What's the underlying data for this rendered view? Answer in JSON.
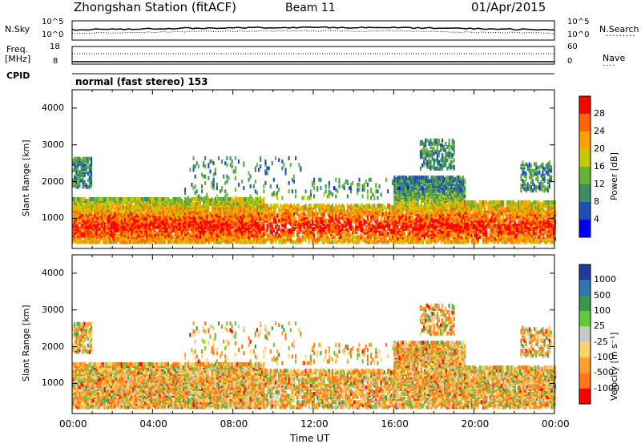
{
  "header": {
    "station": "Zhongshan Station (fitACF)",
    "beam": "Beam 11",
    "date": "01/Apr/2015"
  },
  "top_panels": {
    "nsky_label": "N.Sky",
    "nsearch_label": "N.Search",
    "freq_label_1": "Freq.",
    "freq_label_2": "[MHz]",
    "nave_label": "Nave",
    "cpid_label": "CPID",
    "mode_text": "normal (fast stereo) 153",
    "nsky_ticks": [
      "10^5",
      "10^0"
    ],
    "nsearch_ticks": [
      "10^5",
      "10^0"
    ],
    "freq_ticks": [
      "18",
      "8"
    ],
    "nave_ticks": [
      "60",
      "0"
    ]
  },
  "chart_data": [
    {
      "type": "heatmap",
      "name": "power-panel",
      "ylabel": "Slant Range [km]",
      "xlabel": "",
      "ylim": [
        180,
        4500
      ],
      "yticks": [
        "1000",
        "2000",
        "3000",
        "4000"
      ],
      "colorbar_label": "Power [dB]",
      "colorbar_ticks": [
        "4",
        "8",
        "12",
        "16",
        "20",
        "24",
        "28"
      ],
      "colors": [
        "#0000ff",
        "#1e50b4",
        "#3c8c64",
        "#64b432",
        "#c8c800",
        "#ffa000",
        "#ff6400",
        "#ff0000"
      ]
    },
    {
      "type": "heatmap",
      "name": "velocity-panel",
      "ylabel": "Slant Range [km]",
      "xlabel": "Time UT",
      "ylim": [
        180,
        4500
      ],
      "yticks": [
        "1000",
        "2000",
        "3000",
        "4000"
      ],
      "xticks": [
        "00:00",
        "04:00",
        "08:00",
        "12:00",
        "16:00",
        "20:00",
        "00:00"
      ],
      "colorbar_label": "Velocity [m s⁻¹]",
      "colorbar_ticks": [
        "1000",
        "500",
        "100",
        "25",
        "-25",
        "-100",
        "-500",
        "-1000"
      ],
      "colors": [
        "#1e3ca0",
        "#2d78b4",
        "#3c9650",
        "#64c83c",
        "#c8c8c8",
        "#ffd264",
        "#ffa028",
        "#ff7814",
        "#ff0000"
      ]
    }
  ]
}
